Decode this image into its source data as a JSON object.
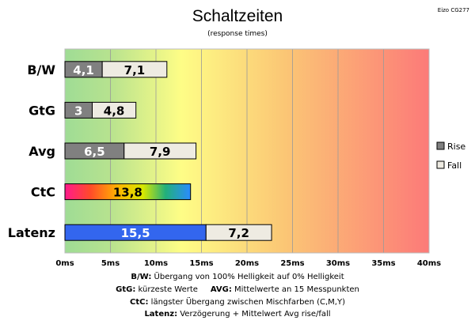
{
  "chart_data": {
    "type": "bar",
    "orientation": "horizontal",
    "stacked": true,
    "title": "Schaltzeiten",
    "subtitle": "(response times)",
    "corner_label": "Eizo CG277",
    "categories": [
      "B/W",
      "GtG",
      "Avg",
      "CtC",
      "Latenz"
    ],
    "series": [
      {
        "name": "Rise",
        "color": "#808080",
        "values": [
          4.1,
          3,
          6.5,
          13.8,
          15.5
        ],
        "labels": [
          "4,1",
          "3",
          "6,5",
          "13,8",
          "15,5"
        ],
        "special_fills": [
          null,
          null,
          null,
          "rainbow-gradient",
          "#3366ee"
        ]
      },
      {
        "name": "Fall",
        "color": "#eeebe2",
        "values": [
          7.1,
          4.8,
          7.9,
          null,
          7.2
        ],
        "labels": [
          "7,1",
          "4,8",
          "7,9",
          "",
          "7,2"
        ]
      }
    ],
    "x_ticks": [
      "0ms",
      "5ms",
      "10ms",
      "15ms",
      "20ms",
      "25ms",
      "30ms",
      "35ms",
      "40ms"
    ],
    "xlim": [
      0,
      40
    ],
    "grid": true,
    "background": "gradient green-yellow-orange-red",
    "legend_position": "right"
  },
  "captions": [
    {
      "key": "B/W",
      "text": " Übergang von 100% Helligkeit auf 0% Helligkeit"
    },
    {
      "key": "GtG",
      "text": " kürzeste  Werte",
      "key2": "AVG",
      "text2": " Mittelwerte  an 15 Messpunkten"
    },
    {
      "key": "CtC",
      "text": " längster Übergang  zwischen Mischfarben (C,M,Y)"
    },
    {
      "key": "Latenz",
      "text": " Verzögerung  + Mittelwert  Avg rise/fall"
    }
  ]
}
